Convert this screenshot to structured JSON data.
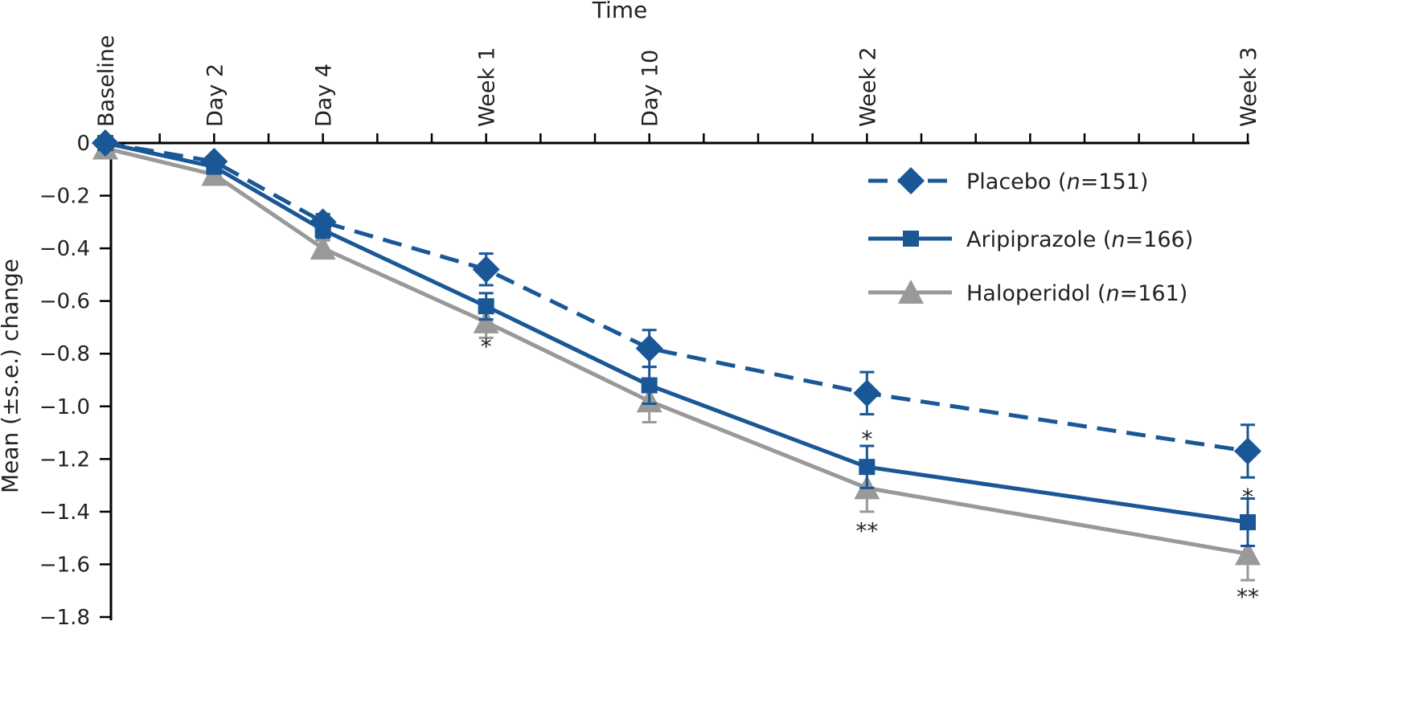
{
  "chart_data": {
    "type": "line",
    "title": "",
    "xlabel": "Time",
    "ylabel": "Mean (±s.e.) change",
    "categories": [
      "Baseline",
      "Day 2",
      "Day 4",
      "Week 1",
      "Day 10",
      "Week 2",
      "Week 3"
    ],
    "x_days": [
      0,
      2,
      4,
      7,
      10,
      14,
      21
    ],
    "ylim": [
      -1.8,
      0
    ],
    "yticks": [
      0,
      -0.2,
      -0.4,
      -0.6,
      -0.8,
      -1.0,
      -1.2,
      -1.4,
      -1.6,
      -1.8
    ],
    "ytick_labels": [
      "0",
      "−0.2",
      "−0.4",
      "−0.6",
      "−0.8",
      "−1.0",
      "−1.2",
      "−1.4",
      "−1.6",
      "−1.8"
    ],
    "legend_position": "top-right",
    "grid": false,
    "series": [
      {
        "name": "Placebo",
        "n_label": "n",
        "n_value": "=151)",
        "color": "#1a5796",
        "marker": "diamond",
        "dash": true,
        "values": [
          0,
          -0.07,
          -0.3,
          -0.48,
          -0.78,
          -0.95,
          -1.17
        ],
        "se": [
          0,
          0,
          0.03,
          0.06,
          0.07,
          0.08,
          0.1
        ]
      },
      {
        "name": "Aripiprazole",
        "n_label": "n",
        "n_value": "=166)",
        "color": "#1a5796",
        "marker": "square",
        "dash": false,
        "values": [
          0,
          -0.09,
          -0.33,
          -0.62,
          -0.92,
          -1.23,
          -1.44
        ],
        "se": [
          0,
          0,
          0.03,
          0.05,
          0.07,
          0.08,
          0.09
        ]
      },
      {
        "name": "Haloperidol",
        "n_label": "n",
        "n_value": "=161)",
        "color": "#999999",
        "marker": "triangle",
        "dash": false,
        "values": [
          -0.02,
          -0.12,
          -0.4,
          -0.68,
          -0.98,
          -1.31,
          -1.56
        ],
        "se": [
          0,
          0,
          0.03,
          0.06,
          0.08,
          0.09,
          0.1
        ]
      }
    ],
    "annotations": [
      {
        "text": "*",
        "x_day": 7,
        "y": -0.76
      },
      {
        "text": "*",
        "x_day": 14,
        "y": -1.11
      },
      {
        "text": "**",
        "x_day": 14,
        "y": -1.46
      },
      {
        "text": "*",
        "x_day": 21,
        "y": -1.33
      },
      {
        "text": "**",
        "x_day": 21,
        "y": -1.71
      }
    ]
  }
}
